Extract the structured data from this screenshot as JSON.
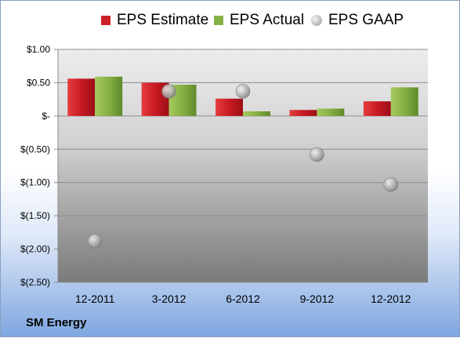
{
  "chart_data": {
    "type": "bar",
    "company": "SM Energy",
    "categories": [
      "12-2011",
      "3-2012",
      "6-2012",
      "9-2012",
      "12-2012"
    ],
    "series": [
      {
        "name": "EPS Estimate",
        "kind": "bar",
        "color": "#cc2028",
        "values": [
          0.56,
          0.5,
          0.26,
          0.09,
          0.22
        ]
      },
      {
        "name": "EPS Actual",
        "kind": "bar",
        "color": "#86b043",
        "values": [
          0.59,
          0.47,
          0.07,
          0.11,
          0.43
        ]
      },
      {
        "name": "EPS GAAP",
        "kind": "scatter",
        "color": "#a8a8a8",
        "values": [
          -1.88,
          0.37,
          0.37,
          -0.58,
          -1.03
        ]
      }
    ],
    "y_ticks": [
      1.0,
      0.5,
      0.0,
      -0.5,
      -1.0,
      -1.5,
      -2.0,
      -2.5
    ],
    "y_tick_labels": [
      "$1.00",
      "$0.50",
      "$-",
      "$(0.50)",
      "$(1.00)",
      "$(1.50)",
      "$(2.00)",
      "$(2.50)"
    ],
    "ylim": [
      -2.5,
      1.0
    ],
    "grid": true,
    "legend_position": "top"
  }
}
